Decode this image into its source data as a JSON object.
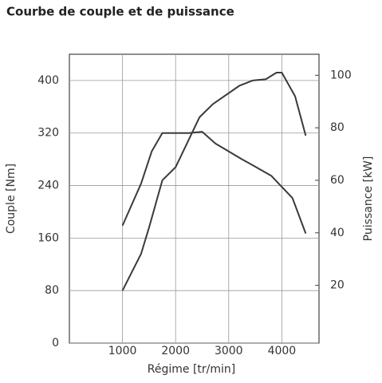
{
  "chart_data": {
    "type": "line",
    "title": "Courbe de couple et de puissance",
    "x_label": "Régime [tr/min]",
    "y_label": "Couple [Nm]",
    "y2_label": "Puissance [kW]",
    "xlim": [
      0,
      4700
    ],
    "xticks": [
      1000,
      2000,
      3000,
      4000
    ],
    "ylim": [
      0,
      440
    ],
    "yticks": [
      0,
      80,
      160,
      240,
      320,
      400
    ],
    "y2lim": [
      -2,
      108
    ],
    "y2ticks": [
      20,
      40,
      60,
      80,
      100
    ],
    "grid": true,
    "series": [
      {
        "name": "Couple",
        "color": "#3a3a3a",
        "axis": "y",
        "x": [
          1000,
          1350,
          1550,
          1750,
          2000,
          2250,
          2500,
          2750,
          3250,
          3450,
          3800,
          4200,
          4450
        ],
        "values": [
          179,
          243,
          292,
          320,
          320,
          320,
          322,
          304,
          280,
          271,
          255,
          221,
          167
        ]
      },
      {
        "name": "Puissance",
        "color": "#3a3a3a",
        "axis": "y2",
        "x": [
          1000,
          1350,
          1500,
          1750,
          2000,
          2450,
          2700,
          3200,
          3450,
          3700,
          3900,
          4000,
          4250,
          4450
        ],
        "values": [
          18,
          32,
          42,
          60,
          65,
          84,
          89,
          96,
          98,
          98.5,
          101,
          101,
          92,
          77
        ]
      }
    ]
  }
}
